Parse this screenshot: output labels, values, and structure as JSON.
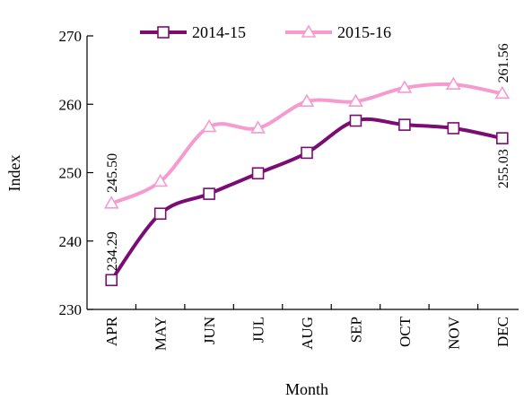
{
  "chart_data": {
    "type": "line",
    "categories": [
      "APR",
      "MAY",
      "JUN",
      "JUL",
      "AUG",
      "SEP",
      "OCT",
      "NOV",
      "DEC"
    ],
    "series": [
      {
        "name": "2014-15",
        "color": "#7b0c74",
        "marker": "square",
        "values": [
          234.29,
          244.0,
          246.9,
          249.9,
          252.9,
          257.6,
          257.0,
          256.5,
          255.03
        ]
      },
      {
        "name": "2015-16",
        "color": "#f59bd0",
        "marker": "triangle",
        "values": [
          245.5,
          248.7,
          256.7,
          256.5,
          260.4,
          260.4,
          262.4,
          262.9,
          261.56
        ]
      }
    ],
    "xlabel": "Month",
    "ylabel": "Index",
    "ylim": [
      230,
      270
    ],
    "yticks": [
      230,
      240,
      250,
      260,
      270
    ],
    "grid": false,
    "legend": "top-center",
    "annotations": [
      {
        "series": 0,
        "index": 0,
        "text": "234.29"
      },
      {
        "series": 1,
        "index": 0,
        "text": "245.50"
      },
      {
        "series": 0,
        "index": 8,
        "text": "255.03"
      },
      {
        "series": 1,
        "index": 8,
        "text": "261.56"
      }
    ]
  }
}
